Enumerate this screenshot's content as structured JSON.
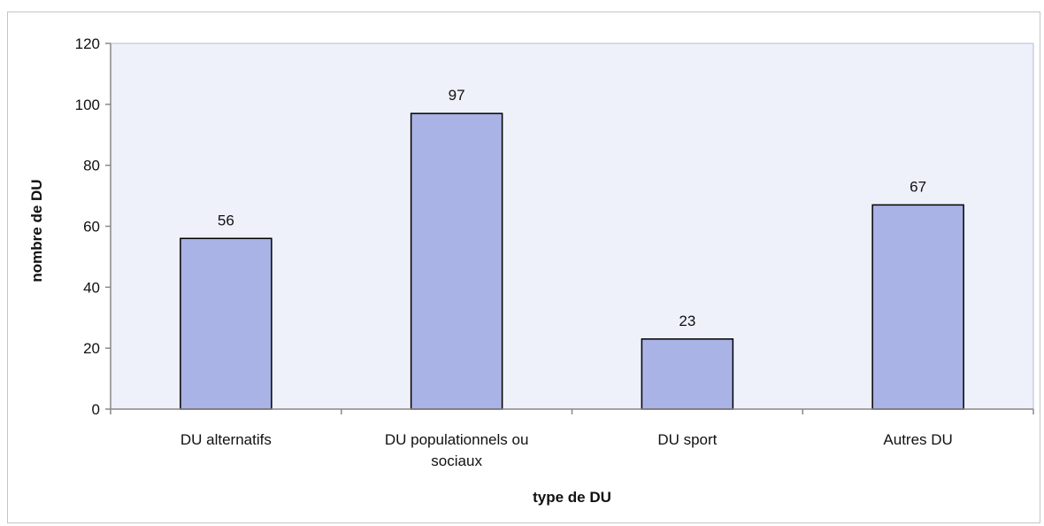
{
  "chart_data": {
    "type": "bar",
    "categories": [
      "DU alternatifs",
      "DU populationnels  ou sociaux",
      "DU sport",
      "Autres DU"
    ],
    "category_lines": [
      [
        "DU alternatifs"
      ],
      [
        "DU populationnels  ou",
        "sociaux"
      ],
      [
        "DU sport"
      ],
      [
        "Autres DU"
      ]
    ],
    "values": [
      56,
      97,
      23,
      67
    ],
    "data_labels": [
      "56",
      "97",
      "23",
      "67"
    ],
    "xlabel": "type de DU",
    "ylabel": "nombre de DU",
    "ylim": [
      0,
      120
    ],
    "yticks": [
      0,
      20,
      40,
      60,
      80,
      100,
      120
    ],
    "grid": false,
    "legend": "none",
    "colors": {
      "plot_background": "#eef0fa",
      "bar_fill": "#a9b3e6",
      "bar_stroke": "#000000",
      "axis": "#888888"
    }
  }
}
